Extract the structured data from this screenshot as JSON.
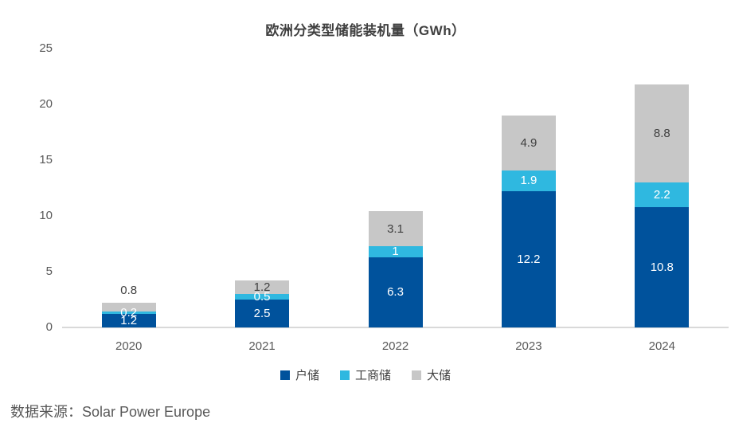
{
  "source": "数据来源：Solar Power Europe",
  "colors": {
    "residential": "#00529C",
    "commercial": "#2FB8E0",
    "utility": "#C7C7C7",
    "axis_text": "#595959",
    "dark_label_text": "#404040",
    "baseline": "#D9D9D9",
    "title_text": "#404040"
  },
  "chart_data": {
    "type": "bar",
    "stacked": true,
    "title": "欧洲分类型储能装机量（GWh）",
    "categories": [
      "2020",
      "2021",
      "2022",
      "2023",
      "2024"
    ],
    "series": [
      {
        "name": "户储",
        "color": "#00529C",
        "label_color": "#FFFFFF",
        "values": [
          1.2,
          2.5,
          6.3,
          12.2,
          10.8
        ]
      },
      {
        "name": "工商储",
        "color": "#2FB8E0",
        "label_color": "#FFFFFF",
        "values": [
          0.2,
          0.5,
          1,
          1.9,
          2.2
        ]
      },
      {
        "name": "大储",
        "color": "#C7C7C7",
        "label_color": "#404040",
        "values": [
          0.8,
          1.2,
          3.1,
          4.9,
          8.8
        ]
      }
    ],
    "totals": [
      2.2,
      4.2,
      10.4,
      19.0,
      21.8
    ],
    "yticks": [
      0,
      5,
      10,
      15,
      20,
      25
    ],
    "ylim": [
      0,
      25
    ],
    "xlabel": "",
    "ylabel": "",
    "grid": false,
    "legend_position": "bottom"
  }
}
